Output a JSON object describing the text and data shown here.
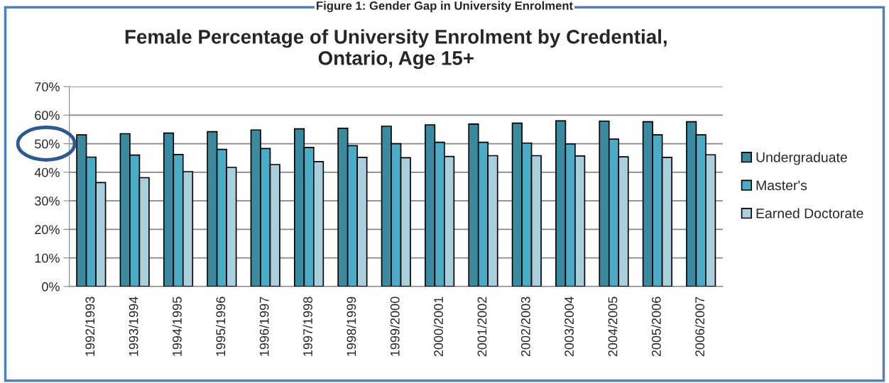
{
  "chart_data": {
    "type": "bar",
    "title": "Female Percentage of University Enrolment by Credential,\nOntario, Age 15+",
    "annotations": [
      "Figure 1: Gender Gap in University Enrolment"
    ],
    "categories": [
      "1992/1993",
      "1993/1994",
      "1994/1995",
      "1995/1996",
      "1996/1997",
      "1997/1998",
      "1998/1999",
      "1999/2000",
      "2000/2001",
      "2001/2002",
      "2002/2003",
      "2003/2004",
      "2004/2005",
      "2005/2006",
      "2006/2007"
    ],
    "series": [
      {
        "name": "Undergraduate",
        "color": "#3a8aa0",
        "values": [
          53.1,
          53.5,
          53.7,
          54.2,
          54.8,
          55.2,
          55.4,
          56.1,
          56.6,
          56.9,
          57.2,
          58.0,
          57.9,
          57.7,
          57.7
        ]
      },
      {
        "name": "Master's",
        "color": "#4aacc6",
        "values": [
          45.3,
          46.0,
          46.2,
          48.0,
          48.3,
          48.7,
          49.3,
          50.0,
          50.5,
          50.5,
          50.2,
          49.9,
          51.6,
          53.1,
          53.1
        ]
      },
      {
        "name": "Earned Doctorate",
        "color": "#a9cfdd",
        "values": [
          36.4,
          38.1,
          40.2,
          41.7,
          42.7,
          43.7,
          45.2,
          45.1,
          45.5,
          45.8,
          45.8,
          45.7,
          45.4,
          45.2,
          46.1
        ]
      }
    ],
    "ylim": [
      0,
      70
    ],
    "yticks": [
      {
        "value": 0,
        "label": "0%"
      },
      {
        "value": 10,
        "label": "10%"
      },
      {
        "value": 20,
        "label": "20%"
      },
      {
        "value": 30,
        "label": "30%"
      },
      {
        "value": 40,
        "label": "40%"
      },
      {
        "value": 50,
        "label": "50%"
      },
      {
        "value": 60,
        "label": "60%"
      },
      {
        "value": 70,
        "label": "70%"
      }
    ],
    "grid": "y",
    "legend": "right"
  }
}
